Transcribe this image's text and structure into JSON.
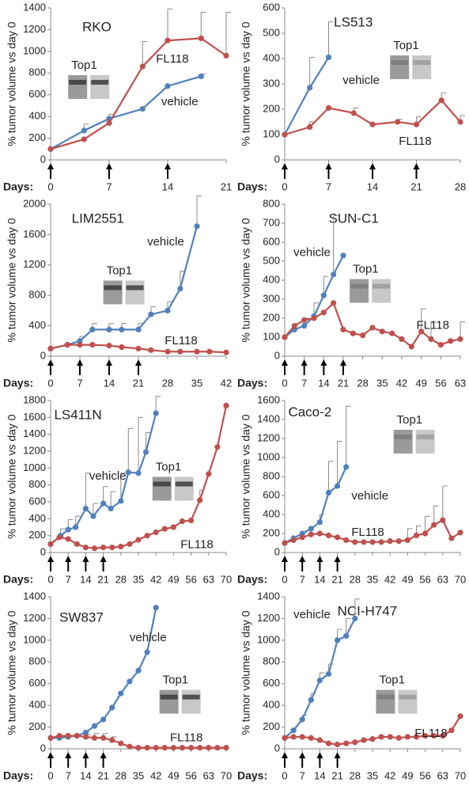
{
  "chart_data": [
    {
      "type": "line",
      "title": "RKO",
      "ylabel": "% tumor volume vs day 0",
      "xlabel": "Days:",
      "inset_label": "Top1",
      "xlim": [
        0,
        21
      ],
      "xticks": [
        0,
        7,
        14,
        21
      ],
      "ylim": [
        0,
        1400
      ],
      "yticks": [
        0,
        200,
        400,
        600,
        800,
        1000,
        1200,
        1400
      ],
      "doses": [
        0,
        7,
        14
      ],
      "series": [
        {
          "name": "vehicle",
          "color": "#4f81bd",
          "x": [
            0,
            4,
            7,
            11,
            14,
            18
          ],
          "values": [
            100,
            270,
            380,
            470,
            680,
            770
          ],
          "errors": [
            null,
            60,
            40,
            null,
            null,
            20
          ]
        },
        {
          "name": "FL118",
          "color": "#c0504d",
          "x": [
            0,
            4,
            7,
            11,
            14,
            18,
            21
          ],
          "values": [
            100,
            190,
            340,
            860,
            1100,
            1120,
            960
          ],
          "errors": [
            null,
            null,
            null,
            230,
            290,
            240,
            400
          ]
        }
      ]
    },
    {
      "type": "line",
      "title": "LS513",
      "ylabel": "% tumor volume vs day 0",
      "xlabel": "Days:",
      "inset_label": "Top1",
      "xlim": [
        0,
        28
      ],
      "xticks": [
        0,
        7,
        14,
        21,
        28
      ],
      "ylim": [
        0,
        600
      ],
      "yticks": [
        0,
        100,
        200,
        300,
        400,
        500,
        600
      ],
      "doses": [
        0,
        7,
        14,
        21
      ],
      "series": [
        {
          "name": "vehicle",
          "color": "#4f81bd",
          "x": [
            0,
            4,
            7
          ],
          "values": [
            100,
            285,
            405
          ],
          "errors": [
            null,
            120,
            140
          ]
        },
        {
          "name": "FL118",
          "color": "#c0504d",
          "x": [
            0,
            4,
            7,
            11,
            14,
            18,
            21,
            25,
            28
          ],
          "values": [
            100,
            130,
            205,
            185,
            140,
            150,
            140,
            235,
            150
          ],
          "errors": [
            null,
            20,
            null,
            20,
            null,
            10,
            30,
            30,
            25
          ]
        }
      ]
    },
    {
      "type": "line",
      "title": "LIM2551",
      "ylabel": "% tumor volume vs day 0",
      "xlabel": "Days:",
      "inset_label": "Top1",
      "xlim": [
        0,
        42
      ],
      "xticks": [
        0,
        7,
        14,
        21,
        28,
        35,
        42
      ],
      "ylim": [
        0,
        2000
      ],
      "yticks": [
        0,
        400,
        800,
        1200,
        1600,
        2000
      ],
      "doses": [
        0,
        7,
        14,
        21
      ],
      "series": [
        {
          "name": "vehicle",
          "color": "#4f81bd",
          "x": [
            0,
            4,
            7,
            10,
            14,
            17,
            21,
            24,
            28,
            31,
            35
          ],
          "values": [
            100,
            150,
            200,
            350,
            350,
            350,
            350,
            550,
            600,
            890,
            1710
          ],
          "errors": [
            null,
            null,
            60,
            80,
            80,
            80,
            80,
            100,
            120,
            230,
            400
          ]
        },
        {
          "name": "FL118",
          "color": "#c0504d",
          "x": [
            0,
            4,
            7,
            10,
            14,
            17,
            21,
            24,
            28,
            31,
            35,
            38,
            42
          ],
          "values": [
            100,
            150,
            150,
            150,
            140,
            120,
            100,
            80,
            60,
            60,
            60,
            60,
            50
          ],
          "errors": [
            null,
            null,
            null,
            null,
            null,
            null,
            null,
            null,
            null,
            null,
            null,
            null,
            null
          ]
        }
      ]
    },
    {
      "type": "line",
      "title": "SUN-C1",
      "ylabel": "% tumor volume vs day 0",
      "xlabel": "Days:",
      "inset_label": "Top1",
      "xlim": [
        0,
        63
      ],
      "xticks": [
        0,
        7,
        14,
        21,
        28,
        35,
        42,
        49,
        56,
        63
      ],
      "ylim": [
        0,
        800
      ],
      "yticks": [
        0,
        100,
        200,
        300,
        400,
        500,
        600,
        700,
        800
      ],
      "doses": [
        0,
        7,
        14,
        21
      ],
      "series": [
        {
          "name": "vehicle",
          "color": "#4f81bd",
          "x": [
            0,
            3.5,
            7,
            10.5,
            14,
            17.5,
            21
          ],
          "values": [
            100,
            140,
            160,
            210,
            320,
            430,
            530
          ],
          "errors": [
            null,
            null,
            40,
            70,
            100,
            310,
            null
          ]
        },
        {
          "name": "FL118",
          "color": "#c0504d",
          "x": [
            0,
            3.5,
            7,
            10.5,
            14,
            17.5,
            21,
            24.5,
            28,
            31.5,
            35,
            38.5,
            42,
            45.5,
            49,
            52.5,
            56,
            59.5,
            63
          ],
          "values": [
            100,
            160,
            190,
            200,
            230,
            280,
            140,
            120,
            110,
            150,
            130,
            120,
            90,
            50,
            130,
            90,
            60,
            80,
            90
          ],
          "errors": [
            null,
            null,
            null,
            null,
            null,
            null,
            null,
            null,
            null,
            null,
            null,
            null,
            null,
            null,
            120,
            90,
            null,
            null,
            90
          ]
        }
      ]
    },
    {
      "type": "line",
      "title": "LS411N",
      "ylabel": "% tumor volume vs day 0",
      "xlabel": "Days:",
      "inset_label": "Top1",
      "xlim": [
        0,
        70
      ],
      "xticks": [
        0,
        7,
        14,
        21,
        28,
        35,
        42,
        49,
        56,
        63,
        70
      ],
      "ylim": [
        0,
        1800
      ],
      "yticks": [
        0,
        200,
        400,
        600,
        800,
        1000,
        1200,
        1400,
        1600,
        1800
      ],
      "doses": [
        0,
        7,
        14,
        21
      ],
      "series": [
        {
          "name": "vehicle",
          "color": "#4f81bd",
          "x": [
            0,
            4,
            7,
            10,
            14,
            17,
            21,
            24,
            28,
            31,
            35,
            38,
            42
          ],
          "values": [
            100,
            200,
            270,
            300,
            520,
            430,
            580,
            520,
            610,
            950,
            940,
            1190,
            1650
          ],
          "errors": [
            null,
            80,
            120,
            130,
            420,
            150,
            200,
            200,
            330,
            520,
            660,
            230,
            200
          ]
        },
        {
          "name": "FL118",
          "color": "#c0504d",
          "x": [
            0,
            3.5,
            7,
            10.5,
            14,
            17.5,
            21,
            24.5,
            28,
            31.5,
            35,
            38.5,
            42,
            45.5,
            49,
            52.5,
            56,
            59.5,
            63,
            66.5,
            70
          ],
          "values": [
            100,
            180,
            160,
            100,
            60,
            50,
            60,
            60,
            70,
            100,
            150,
            200,
            240,
            280,
            300,
            370,
            380,
            620,
            930,
            1250,
            1740
          ],
          "errors": [
            null,
            null,
            null,
            null,
            null,
            null,
            null,
            null,
            null,
            null,
            null,
            null,
            null,
            null,
            null,
            null,
            null,
            120,
            null,
            null,
            null
          ]
        }
      ]
    },
    {
      "type": "line",
      "title": "Caco-2",
      "ylabel": "% tumor volume vs day 0",
      "xlabel": "Days:",
      "inset_label": "Top1",
      "xlim": [
        0,
        70
      ],
      "xticks": [
        0,
        7,
        14,
        21,
        28,
        35,
        42,
        49,
        56,
        63,
        70
      ],
      "ylim": [
        0,
        1600
      ],
      "yticks": [
        0,
        200,
        400,
        600,
        800,
        1000,
        1200,
        1400,
        1600
      ],
      "doses": [
        0,
        7,
        14,
        21
      ],
      "series": [
        {
          "name": "vehicle",
          "color": "#4f81bd",
          "x": [
            0,
            3.5,
            7,
            10.5,
            14,
            17.5,
            21,
            24.5
          ],
          "values": [
            100,
            150,
            200,
            250,
            320,
            630,
            700,
            900
          ],
          "errors": [
            null,
            null,
            null,
            null,
            80,
            330,
            470,
            640
          ]
        },
        {
          "name": "FL118",
          "color": "#c0504d",
          "x": [
            0,
            3.5,
            7,
            10.5,
            14,
            17.5,
            21,
            24.5,
            28,
            31.5,
            35,
            38.5,
            42,
            45.5,
            49,
            52.5,
            56,
            59.5,
            63,
            66.5,
            70
          ],
          "values": [
            100,
            130,
            160,
            190,
            200,
            180,
            160,
            130,
            110,
            110,
            110,
            110,
            120,
            120,
            130,
            180,
            200,
            290,
            340,
            150,
            210
          ],
          "errors": [
            null,
            null,
            null,
            null,
            null,
            null,
            null,
            null,
            null,
            null,
            null,
            null,
            null,
            null,
            120,
            100,
            180,
            200,
            360,
            null,
            null
          ]
        }
      ]
    },
    {
      "type": "line",
      "title": "SW837",
      "ylabel": "% tumor volume vs day 0",
      "xlabel": "Days:",
      "inset_label": "Top1",
      "xlim": [
        0,
        70
      ],
      "xticks": [
        0,
        7,
        14,
        21,
        28,
        35,
        42,
        49,
        56,
        63,
        70
      ],
      "ylim": [
        0,
        1400
      ],
      "yticks": [
        0,
        200,
        400,
        600,
        800,
        1000,
        1200,
        1400
      ],
      "doses": [
        0,
        7,
        14,
        21
      ],
      "series": [
        {
          "name": "vehicle",
          "color": "#4f81bd",
          "x": [
            0,
            3.5,
            7,
            10.5,
            14,
            17.5,
            21,
            24.5,
            28,
            31.5,
            35,
            38.5,
            42
          ],
          "values": [
            100,
            100,
            110,
            120,
            150,
            210,
            270,
            380,
            510,
            620,
            720,
            890,
            1300
          ],
          "errors": [
            null,
            null,
            null,
            null,
            null,
            null,
            null,
            null,
            null,
            null,
            null,
            null,
            null
          ]
        },
        {
          "name": "FL118",
          "color": "#c0504d",
          "x": [
            0,
            3.5,
            7,
            10.5,
            14,
            17.5,
            21,
            24.5,
            28,
            31.5,
            35,
            38.5,
            42,
            45.5,
            49,
            52.5,
            56,
            59.5,
            63,
            66.5,
            70
          ],
          "values": [
            100,
            120,
            120,
            120,
            110,
            100,
            100,
            80,
            50,
            20,
            10,
            10,
            10,
            10,
            10,
            10,
            10,
            10,
            10,
            10,
            10
          ],
          "errors": [
            null,
            null,
            null,
            null,
            20,
            40,
            40,
            30,
            null,
            null,
            null,
            null,
            null,
            null,
            null,
            null,
            null,
            null,
            null,
            null,
            null
          ]
        }
      ]
    },
    {
      "type": "line",
      "title": "NCI-H747",
      "ylabel": "% tumor volume vs day 0",
      "xlabel": "Days:",
      "inset_label": "Top1",
      "xlim": [
        0,
        70
      ],
      "xticks": [
        0,
        7,
        14,
        21,
        28,
        35,
        42,
        49,
        56,
        63,
        70
      ],
      "ylim": [
        0,
        1400
      ],
      "yticks": [
        0,
        200,
        400,
        600,
        800,
        1000,
        1200,
        1400
      ],
      "doses": [
        0,
        7,
        14,
        21
      ],
      "series": [
        {
          "name": "vehicle",
          "color": "#4f81bd",
          "x": [
            0,
            3.5,
            7,
            10.5,
            14,
            17.5,
            21,
            24.5,
            28
          ],
          "values": [
            100,
            170,
            270,
            450,
            630,
            690,
            1000,
            1040,
            1200
          ],
          "errors": [
            null,
            null,
            40,
            60,
            70,
            90,
            100,
            160,
            180
          ]
        },
        {
          "name": "FL118",
          "color": "#c0504d",
          "x": [
            0,
            3.5,
            7,
            10.5,
            14,
            17.5,
            21,
            24.5,
            28,
            31.5,
            35,
            38.5,
            42,
            45.5,
            49,
            52.5,
            56,
            59.5,
            63,
            66.5,
            70
          ],
          "values": [
            100,
            110,
            110,
            100,
            80,
            50,
            40,
            50,
            60,
            80,
            90,
            110,
            110,
            100,
            110,
            110,
            120,
            120,
            120,
            170,
            300
          ],
          "errors": [
            null,
            null,
            null,
            null,
            null,
            null,
            null,
            null,
            null,
            null,
            null,
            null,
            null,
            null,
            null,
            null,
            null,
            null,
            null,
            null,
            null
          ]
        }
      ]
    }
  ]
}
